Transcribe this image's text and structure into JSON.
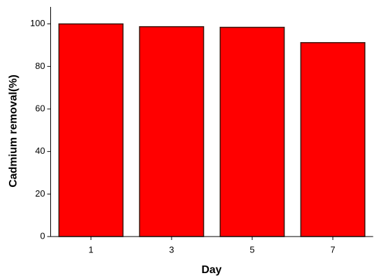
{
  "chart_data": {
    "type": "bar",
    "x_label": "Day",
    "y_label": "Cadmium removal(%)",
    "categories": [
      "1",
      "3",
      "5",
      "7"
    ],
    "values": [
      100,
      98.7,
      98.4,
      91.2
    ],
    "color": "#ff0000",
    "ylim": [
      0,
      108
    ],
    "yticks": [
      0,
      20,
      40,
      60,
      80,
      100
    ]
  }
}
